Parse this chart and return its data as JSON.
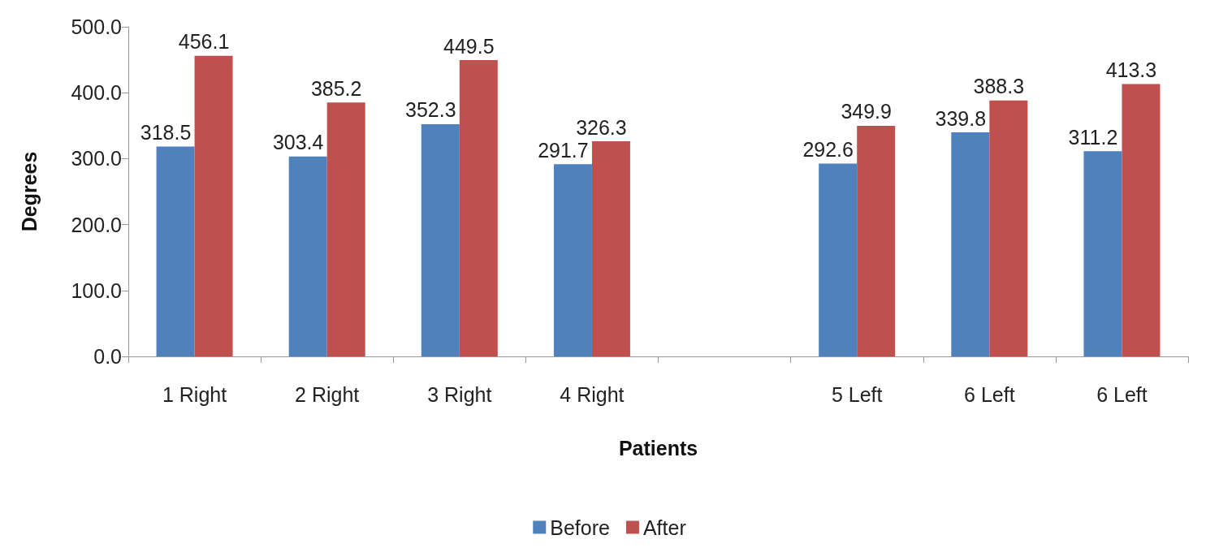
{
  "chart_data": {
    "type": "bar",
    "xlabel": "Patients",
    "ylabel": "Degrees",
    "categories": [
      "1 Right",
      "2 Right",
      "3 Right",
      "4 Right",
      null,
      "5 Left",
      "6 Left",
      "6 Left"
    ],
    "series": [
      {
        "name": "Before",
        "color": "#4f81bd",
        "values": [
          318.5,
          303.4,
          352.3,
          291.7,
          null,
          292.6,
          339.8,
          311.2
        ]
      },
      {
        "name": "After",
        "color": "#c0504d",
        "values": [
          456.1,
          385.2,
          449.5,
          326.3,
          null,
          349.9,
          388.3,
          413.3
        ]
      }
    ],
    "ylim": [
      0,
      500
    ],
    "yticks": [
      {
        "value": 0,
        "label": "0.0"
      },
      {
        "value": 100,
        "label": "100.0"
      },
      {
        "value": 200,
        "label": "200.0"
      },
      {
        "value": 300,
        "label": "300.0"
      },
      {
        "value": 400,
        "label": "400.0"
      },
      {
        "value": 500,
        "label": "500.0"
      }
    ],
    "data_labels": true,
    "grid": false,
    "legend": "bottom"
  }
}
